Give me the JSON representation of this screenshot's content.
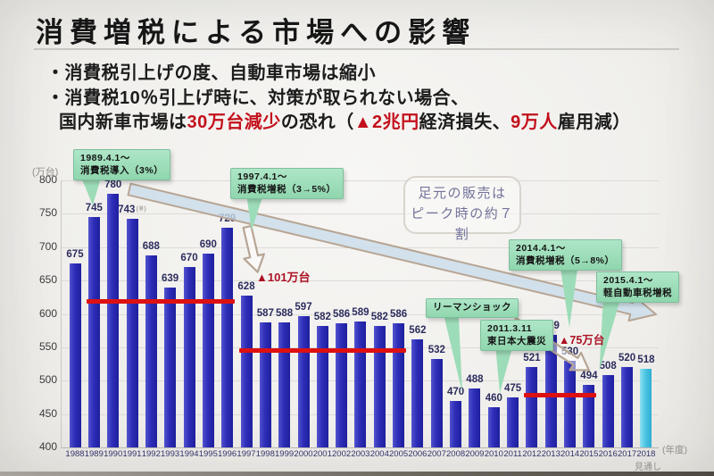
{
  "slide": {
    "title": "消費増税による市場への影響",
    "bullet1": "・消費税引上げの度、自動車市場は縮小",
    "bullet2": "・消費税10％引上げ時に、対策が取られない場合、",
    "bullet3_segments": [
      "国内新車市場は",
      "30万台減少",
      "の恐れ（",
      "▲2兆円",
      "経済損失、",
      "9万人",
      "雇用減）"
    ],
    "accent_red": "#c3101c"
  },
  "chart_data": {
    "type": "bar",
    "unit_label": "(万台)",
    "xaxis_label": "(年度)",
    "forecast_note": "見通し",
    "categories": [
      "1988",
      "1989",
      "1990",
      "1991",
      "1992",
      "1993",
      "1994",
      "1995",
      "1996",
      "1997",
      "1998",
      "1999",
      "2000",
      "2001",
      "2002",
      "2003",
      "2004",
      "2005",
      "2006",
      "2007",
      "2008",
      "2009",
      "2010",
      "2011",
      "2012",
      "2013",
      "2014",
      "2015",
      "2016",
      "2017",
      "2018"
    ],
    "values": [
      675,
      745,
      780,
      743,
      688,
      639,
      670,
      690,
      729,
      628,
      587,
      588,
      597,
      582,
      586,
      589,
      582,
      586,
      562,
      532,
      470,
      488,
      460,
      475,
      521,
      569,
      530,
      494,
      508,
      520,
      518
    ],
    "ylim": [
      400,
      800
    ],
    "ytick_step": 50,
    "grid": true,
    "bar_color": "#2d2db8",
    "forecast_year": "2018",
    "forecast_color": "#49c3e2",
    "red_line_color": "#dd1111",
    "callout_color": "#9ddcb8",
    "bar_note": {
      "year": "1991",
      "text": "(※)"
    },
    "red_lines": [
      {
        "from": "1989",
        "to": "1996",
        "value": 620
      },
      {
        "from": "1997",
        "to": "2005",
        "value": 546
      },
      {
        "from": "2012",
        "to": "2015",
        "value": 479
      }
    ],
    "annotations": {
      "drop1": "▲101万台",
      "drop2": "▲75万台",
      "peak_box_line1": "足元の販売は",
      "peak_box_line2": "ピーク時の約７割"
    },
    "callouts": [
      {
        "lines": [
          "1989.4.1～",
          "消費税導入（3%）"
        ]
      },
      {
        "lines": [
          "1997.4.1～",
          "消費税増税（3→5%）"
        ]
      },
      {
        "lines": [
          "リーマンショック"
        ]
      },
      {
        "lines": [
          "2011.3.11",
          "東日本大震災"
        ]
      },
      {
        "lines": [
          "2014.4.1～",
          "消費税増税（5→8%）"
        ]
      },
      {
        "lines": [
          "2015.4.1～",
          "軽自動車税増税"
        ]
      }
    ]
  }
}
